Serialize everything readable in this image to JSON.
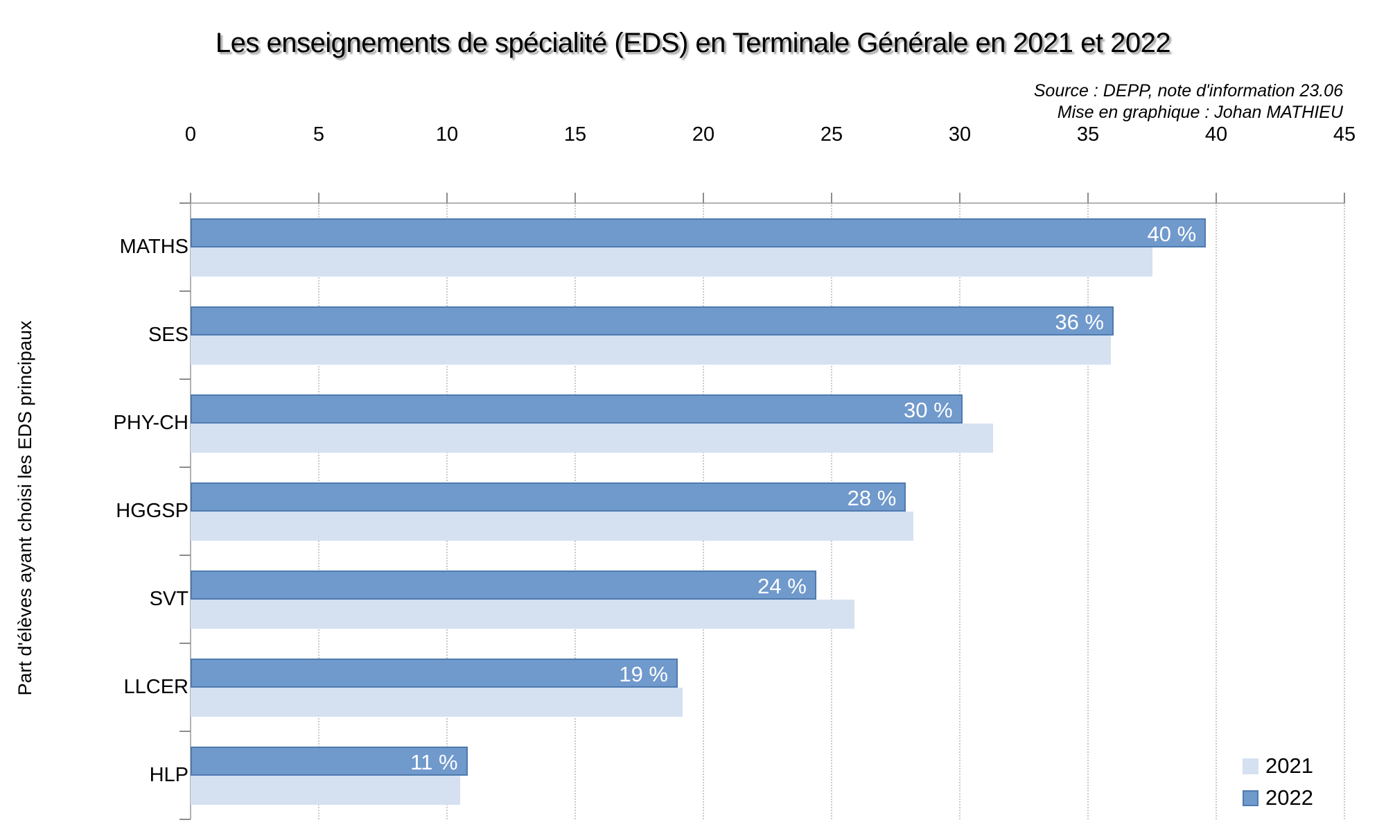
{
  "title": "Les enseignements de spécialité (EDS) en Terminale Générale en 2021 et 2022",
  "source": {
    "line1": "Source : DEPP, note d'information 23.06",
    "line2": "Mise en graphique : Johan MATHIEU"
  },
  "y_axis_title": "Part d'élèves ayant choisi les EDS principaux",
  "x_axis": {
    "ticks": [
      0,
      5,
      10,
      15,
      20,
      25,
      30,
      35,
      40,
      45
    ],
    "min": 0,
    "max": 45
  },
  "legend": {
    "position": "bottom-right",
    "items": [
      {
        "label": "2021",
        "color": "#d5e1f1",
        "border": "none"
      },
      {
        "label": "2022",
        "color": "#7099cc",
        "border": "#4e7ab0"
      }
    ]
  },
  "colors": {
    "bar_2021_fill": "#d5e1f1",
    "bar_2022_fill": "#7099cc",
    "bar_2022_border": "#4e7ab0",
    "grid_line": "#c9c9c9",
    "axis_line": "#b2b2b2",
    "value_label_text": "#ffffff",
    "background": "#ffffff"
  },
  "chart_data": {
    "type": "bar",
    "orientation": "horizontal",
    "title": "Les enseignements de spécialité (EDS) en Terminale Générale en 2021 et 2022",
    "xlabel": "",
    "ylabel": "Part d'élèves ayant choisi les EDS principaux",
    "xlim": [
      0,
      45
    ],
    "grid": "vertical-dotted",
    "legend_position": "bottom-right",
    "categories": [
      "MATHS",
      "SES",
      "PHY-CH",
      "HGGSP",
      "SVT",
      "LLCER",
      "HLP"
    ],
    "series": [
      {
        "name": "2021",
        "values": [
          37.5,
          35.9,
          31.3,
          28.2,
          25.9,
          19.2,
          10.5
        ],
        "labels": [
          "",
          "",
          "",
          "",
          "",
          "",
          ""
        ]
      },
      {
        "name": "2022",
        "values": [
          39.6,
          36.0,
          30.1,
          27.9,
          24.4,
          19.0,
          10.8
        ],
        "labels": [
          "40 %",
          "36 %",
          "30 %",
          "28 %",
          "24 %",
          "19 %",
          "11 %"
        ]
      }
    ]
  }
}
